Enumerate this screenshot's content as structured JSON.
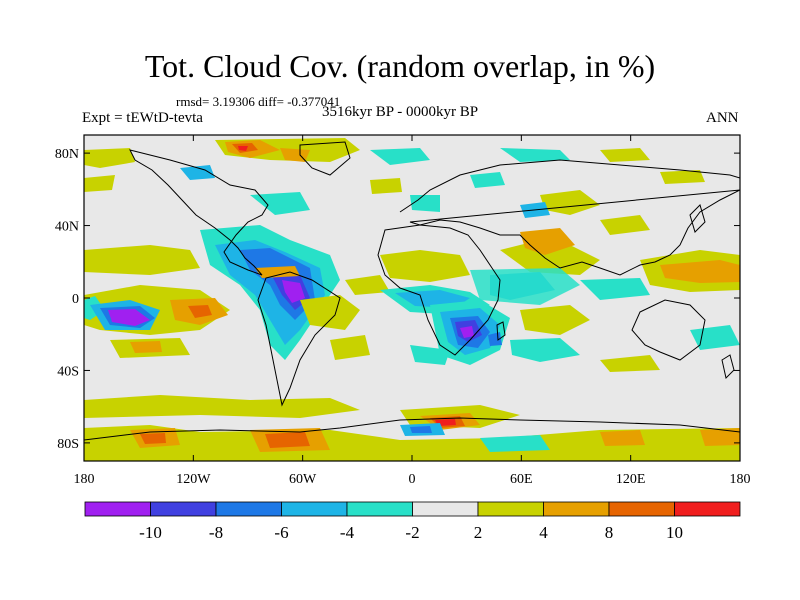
{
  "header": {
    "title": "Tot. Cloud Cov. (random overlap, in %)",
    "stats": "rmsd= 3.19306 diff= -0.377041",
    "expt": "Expt = tEWtD-tevta",
    "period": "3516kyr BP - 0000kyr BP",
    "season": "ANN"
  },
  "map": {
    "background_color": "#e8e8e8",
    "lat_labels": [
      "80N",
      "40N",
      "0",
      "40S",
      "80S"
    ],
    "lat_values": [
      80,
      40,
      0,
      -40,
      -80
    ],
    "lon_labels": [
      "180",
      "120W",
      "60W",
      "0",
      "60E",
      "120E",
      "180"
    ],
    "lon_values": [
      -180,
      -120,
      -60,
      0,
      60,
      120,
      180
    ]
  },
  "colorbar": {
    "colors": [
      "#a020f0",
      "#4040e0",
      "#1e78e6",
      "#1eb4e6",
      "#28e0c8",
      "#e8e8e8",
      "#c8d200",
      "#e6a000",
      "#e66400",
      "#f01e1e"
    ],
    "labels": [
      "-10",
      "-8",
      "-6",
      "-4",
      "-2",
      "2",
      "4",
      "8",
      "10"
    ]
  }
}
